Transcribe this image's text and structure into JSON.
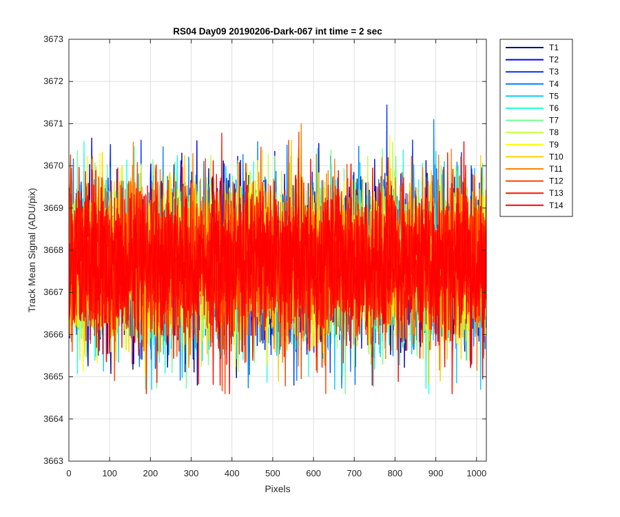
{
  "chart_data": {
    "type": "line",
    "title": "RS04 Day09 20190206-Dark-067 int time = 2 sec",
    "xlabel": "Pixels",
    "ylabel": "Track Mean Signal (ADU/pix)",
    "xlim": [
      0,
      1024
    ],
    "ylim": [
      3663,
      3673
    ],
    "xticks": [
      0,
      100,
      200,
      300,
      400,
      500,
      600,
      700,
      800,
      900,
      1000
    ],
    "yticks": [
      3663,
      3664,
      3665,
      3666,
      3667,
      3668,
      3669,
      3670,
      3671,
      3672,
      3673
    ],
    "grid": true,
    "legend_position": "outside-top-right",
    "n_points_per_series": 1024,
    "series": [
      {
        "name": "T1",
        "color": "#00008f",
        "mean": 3667.7,
        "std": 0.95,
        "min": 3664.8,
        "max": 3671.4
      },
      {
        "name": "T2",
        "color": "#0000df",
        "mean": 3667.7,
        "std": 0.95,
        "min": 3664.8,
        "max": 3671.2
      },
      {
        "name": "T3",
        "color": "#0030ff",
        "mean": 3667.7,
        "std": 0.95,
        "min": 3664.8,
        "max": 3672.0
      },
      {
        "name": "T4",
        "color": "#0080ff",
        "mean": 3667.7,
        "std": 0.95,
        "min": 3664.7,
        "max": 3671.1
      },
      {
        "name": "T5",
        "color": "#00cfff",
        "mean": 3667.7,
        "std": 0.95,
        "min": 3664.7,
        "max": 3671.0
      },
      {
        "name": "T6",
        "color": "#20ffdf",
        "mean": 3667.7,
        "std": 0.95,
        "min": 3664.6,
        "max": 3671.3
      },
      {
        "name": "T7",
        "color": "#70ff8f",
        "mean": 3667.7,
        "std": 0.95,
        "min": 3664.6,
        "max": 3670.9
      },
      {
        "name": "T8",
        "color": "#bfff40",
        "mean": 3667.7,
        "std": 0.95,
        "min": 3664.4,
        "max": 3671.0
      },
      {
        "name": "T9",
        "color": "#ffff00",
        "mean": 3667.7,
        "std": 0.95,
        "min": 3663.5,
        "max": 3671.3
      },
      {
        "name": "T10",
        "color": "#ffcf00",
        "mean": 3667.7,
        "std": 0.95,
        "min": 3664.0,
        "max": 3671.4
      },
      {
        "name": "T11",
        "color": "#ff8000",
        "mean": 3667.7,
        "std": 0.95,
        "min": 3664.4,
        "max": 3671.0
      },
      {
        "name": "T12",
        "color": "#ff4000",
        "mean": 3667.7,
        "std": 0.95,
        "min": 3664.6,
        "max": 3670.8
      },
      {
        "name": "T13",
        "color": "#ff1000",
        "mean": 3667.7,
        "std": 0.95,
        "min": 3664.6,
        "max": 3670.8
      },
      {
        "name": "T14",
        "color": "#ff0000",
        "mean": 3667.7,
        "std": 0.9,
        "min": 3664.6,
        "max": 3670.6
      }
    ]
  }
}
